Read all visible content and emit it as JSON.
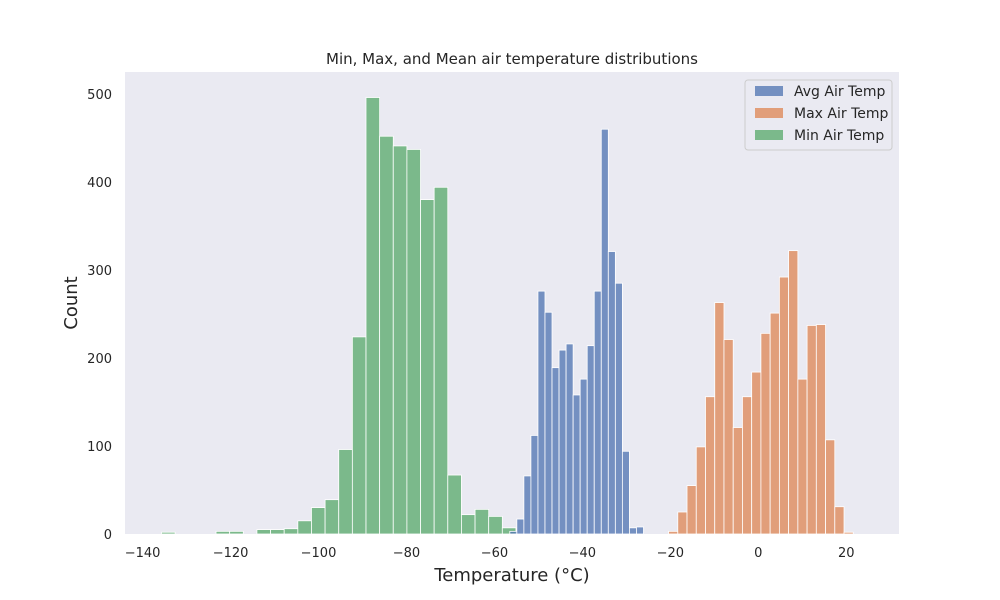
{
  "chart_data": {
    "type": "histogram",
    "title": "Min, Max, and Mean air temperature distributions",
    "xlabel": "Temperature (°C)",
    "ylabel": "Count",
    "xlim": [
      -144,
      32
    ],
    "ylim": [
      0,
      525
    ],
    "xticks": [
      -140,
      -120,
      -100,
      -80,
      -60,
      -40,
      -20,
      0,
      20
    ],
    "yticks": [
      0,
      100,
      200,
      300,
      400,
      500
    ],
    "tick_labels_x": [
      "−140",
      "−120",
      "−100",
      "−80",
      "−60",
      "−40",
      "−20",
      "0",
      "20"
    ],
    "tick_labels_y": [
      "0",
      "100",
      "200",
      "300",
      "400",
      "500"
    ],
    "grid": false,
    "background": "#eaeaf2",
    "legend": {
      "placement": "upper right",
      "labels": [
        "Avg Air Temp",
        "Max Air Temp",
        "Min Air Temp"
      ]
    },
    "series": [
      {
        "name": "Avg Air Temp",
        "color": "#4c72b0",
        "bin_width": 1.6,
        "bins": [
          [
            -56.5,
            3
          ],
          [
            -54.9,
            17
          ],
          [
            -53.3,
            66
          ],
          [
            -51.7,
            112
          ],
          [
            -50.1,
            276
          ],
          [
            -48.5,
            252
          ],
          [
            -46.9,
            189
          ],
          [
            -45.3,
            209
          ],
          [
            -43.7,
            216
          ],
          [
            -42.1,
            158
          ],
          [
            -40.5,
            176
          ],
          [
            -38.9,
            214
          ],
          [
            -37.3,
            276
          ],
          [
            -35.7,
            460
          ],
          [
            -34.1,
            321
          ],
          [
            -32.5,
            285
          ],
          [
            -30.9,
            94
          ],
          [
            -29.3,
            7
          ],
          [
            -27.7,
            8
          ]
        ]
      },
      {
        "name": "Max Air Temp",
        "color": "#dd8452",
        "bin_width": 2.1,
        "bins": [
          [
            -20.4,
            3
          ],
          [
            -18.3,
            25
          ],
          [
            -16.2,
            55
          ],
          [
            -14.1,
            99
          ],
          [
            -12.0,
            156
          ],
          [
            -9.9,
            263
          ],
          [
            -7.8,
            221
          ],
          [
            -5.7,
            121
          ],
          [
            -3.6,
            156
          ],
          [
            -1.5,
            184
          ],
          [
            0.6,
            228
          ],
          [
            2.7,
            251
          ],
          [
            4.8,
            292
          ],
          [
            6.9,
            322
          ],
          [
            9.0,
            176
          ],
          [
            11.1,
            237
          ],
          [
            13.2,
            238
          ],
          [
            15.3,
            107
          ],
          [
            17.4,
            31
          ],
          [
            19.5,
            2
          ]
        ]
      },
      {
        "name": "Min Air Temp",
        "color": "#55a868",
        "bin_width": 3.1,
        "bins": [
          [
            -135.7,
            2
          ],
          [
            -132.6,
            0
          ],
          [
            -129.5,
            0
          ],
          [
            -126.4,
            0
          ],
          [
            -123.3,
            3
          ],
          [
            -120.2,
            3
          ],
          [
            -117.1,
            0
          ],
          [
            -114.0,
            5
          ],
          [
            -110.9,
            5
          ],
          [
            -107.8,
            6
          ],
          [
            -104.7,
            15
          ],
          [
            -101.6,
            30
          ],
          [
            -98.5,
            39
          ],
          [
            -95.4,
            96
          ],
          [
            -92.3,
            224
          ],
          [
            -89.2,
            496
          ],
          [
            -86.1,
            452
          ],
          [
            -83.0,
            441
          ],
          [
            -79.9,
            437
          ],
          [
            -76.8,
            380
          ],
          [
            -73.7,
            394
          ],
          [
            -70.6,
            67
          ],
          [
            -67.5,
            22
          ],
          [
            -64.4,
            28
          ],
          [
            -61.3,
            20
          ],
          [
            -58.2,
            7
          ]
        ]
      }
    ]
  }
}
